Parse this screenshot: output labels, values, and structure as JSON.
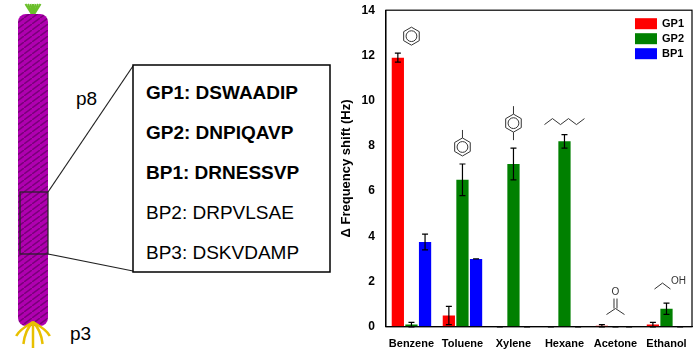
{
  "diagram": {
    "labels": [
      "p8",
      "p3"
    ],
    "peptides": [
      {
        "text": "GP1: DSWAADIP",
        "bold": true
      },
      {
        "text": "GP2: DNPIQAVP",
        "bold": true
      },
      {
        "text": "BP1: DRNESSVP",
        "bold": true
      },
      {
        "text": "BP2: DRPVLSAE",
        "bold": false
      },
      {
        "text": "BP3: DSKVDAMP",
        "bold": false
      }
    ]
  },
  "chart_data": {
    "type": "bar",
    "y_label": "Δ Frequency shift (Hz)",
    "categories": [
      "Benzene",
      "Toluene",
      "Xylene",
      "Hexane",
      "Acetone",
      "Ethanol"
    ],
    "series": [
      {
        "name": "GP1",
        "color": "#ff0000",
        "values": [
          11.9,
          0.5,
          0,
          0,
          0.05,
          0.1
        ],
        "errors": [
          0.2,
          0.4,
          0,
          0,
          0.05,
          0.1
        ]
      },
      {
        "name": "GP2",
        "color": "#008000",
        "values": [
          0.1,
          6.5,
          7.2,
          8.2,
          0,
          0.8
        ],
        "errors": [
          0.1,
          0.7,
          0.7,
          0.3,
          0,
          0.25
        ]
      },
      {
        "name": "BP1",
        "color": "#0000ff",
        "values": [
          3.75,
          3.0,
          0,
          0,
          0,
          0
        ],
        "errors": [
          0.35,
          0,
          0,
          0,
          0,
          0
        ]
      }
    ],
    "annotations": [
      {
        "category": "Acetone",
        "text": "O"
      },
      {
        "category": "Ethanol",
        "text": "OH"
      }
    ],
    "ylim": [
      0,
      14
    ],
    "yticks": [
      0,
      2,
      4,
      6,
      8,
      10,
      12,
      14
    ],
    "grid": false,
    "legend": "top-right"
  }
}
